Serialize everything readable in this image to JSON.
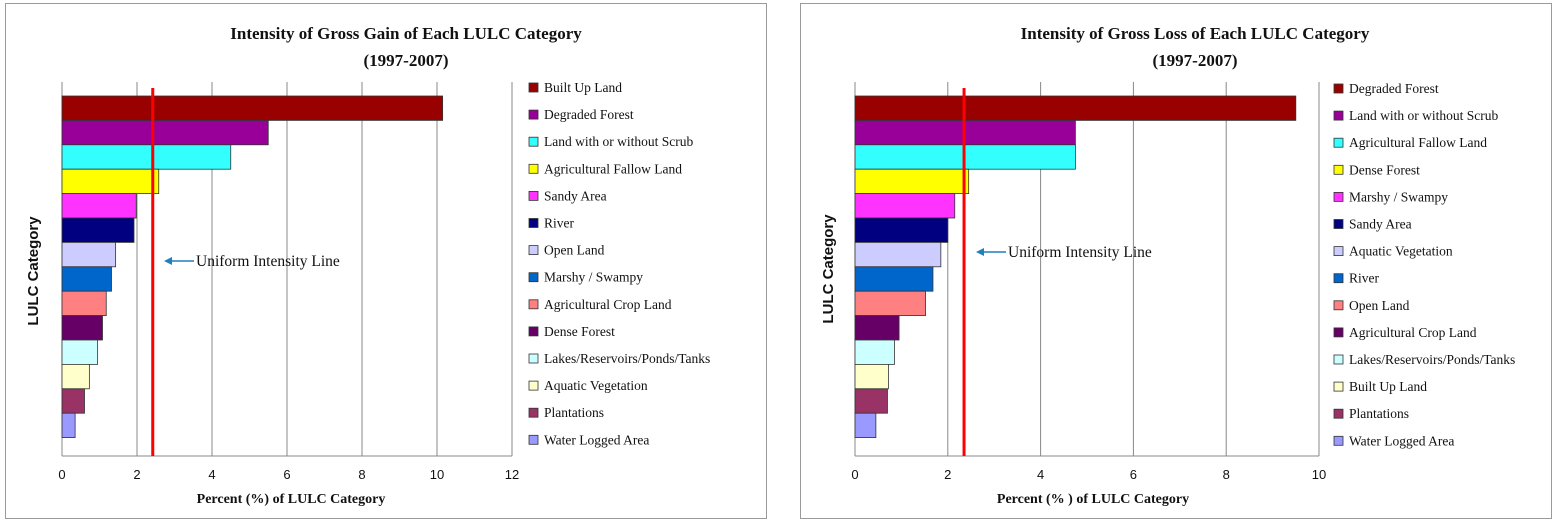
{
  "chart_data": [
    {
      "type": "bar",
      "orientation": "horizontal",
      "title": "Intensity of Gross  Gain of Each LULC Category",
      "subtitle": "(1997-2007)",
      "xlabel": "Percent (%) of LULC Category",
      "ylabel": "LULC Category",
      "xlim": [
        0,
        12
      ],
      "xticks": [
        0,
        2,
        4,
        6,
        8,
        10,
        12
      ],
      "grid": true,
      "legend_position": "right",
      "uniform_intensity": 2.42,
      "annotation": "Uniform Intensity Line",
      "categories": [
        "Built Up Land",
        "Degraded Forest",
        "Land with or without Scrub",
        "Agricultural Fallow Land",
        "Sandy Area",
        "River",
        "Open Land",
        "Marshy / Swampy",
        "Agricultural Crop Land",
        "Dense Forest",
        "Lakes/Reservoirs/Ponds/Tanks",
        "Aquatic Vegetation",
        "Plantations",
        "Water Logged Area"
      ],
      "values": [
        10.15,
        5.5,
        4.5,
        2.58,
        1.98,
        1.92,
        1.43,
        1.32,
        1.18,
        1.08,
        0.95,
        0.73,
        0.6,
        0.35
      ],
      "colors": [
        "#990000",
        "#990099",
        "#33ffff",
        "#ffff00",
        "#ff33ff",
        "#000080",
        "#ccccff",
        "#0066cc",
        "#ff8080",
        "#660066",
        "#ccffff",
        "#ffffcc",
        "#993366",
        "#9999ff"
      ]
    },
    {
      "type": "bar",
      "orientation": "horizontal",
      "title": "Intensity of Gross Loss of Each LULC Category",
      "subtitle": "(1997-2007)",
      "xlabel": "Percent (% ) of LULC Category",
      "ylabel": "LULC Category",
      "xlim": [
        0,
        10
      ],
      "xticks": [
        0,
        2,
        4,
        6,
        8,
        10
      ],
      "grid": true,
      "legend_position": "right",
      "uniform_intensity": 2.35,
      "annotation": "Uniform Intensity Line",
      "categories": [
        "Degraded Forest",
        "Land with or without Scrub",
        "Agricultural Fallow Land",
        "Dense Forest",
        "Marshy / Swampy",
        "Sandy Area",
        "Aquatic Vegetation",
        "River",
        "Open Land",
        "Agricultural Crop Land",
        "Lakes/Reservoirs/Ponds/Tanks",
        "Built Up Land",
        "Plantations",
        "Water Logged Area"
      ],
      "values": [
        9.5,
        4.75,
        4.75,
        2.45,
        2.15,
        2.0,
        1.85,
        1.68,
        1.52,
        0.95,
        0.85,
        0.72,
        0.7,
        0.45
      ],
      "colors": [
        "#990000",
        "#990099",
        "#33ffff",
        "#ffff00",
        "#ff33ff",
        "#000080",
        "#ccccff",
        "#0066cc",
        "#ff8080",
        "#660066",
        "#ccffff",
        "#ffffcc",
        "#993366",
        "#9999ff"
      ]
    }
  ]
}
